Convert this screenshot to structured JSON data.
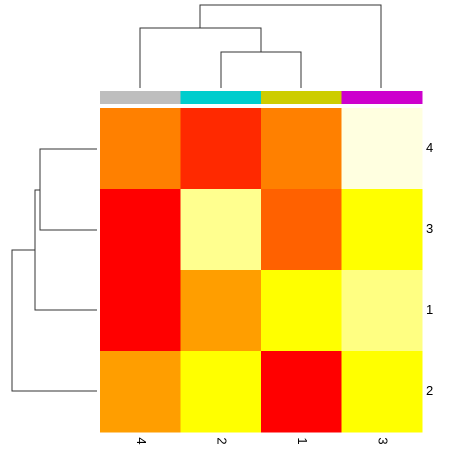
{
  "chart_data": {
    "type": "heatmap",
    "columns": [
      "4",
      "2",
      "1",
      "3"
    ],
    "rows": [
      "4",
      "3",
      "1",
      "2"
    ],
    "column_colors": [
      "#bebebe",
      "#00cdcd",
      "#cdcd00",
      "#cd00cd"
    ],
    "colors": [
      "#ff0000",
      "#ffff00",
      "#ffffe0"
    ],
    "values": [
      [
        0.25,
        0.08,
        0.25,
        1
      ],
      [
        0,
        0.82,
        0.19,
        0.5
      ],
      [
        0,
        0.31,
        0.5,
        0.79
      ],
      [
        0.31,
        0.5,
        0,
        0.5
      ]
    ]
  }
}
